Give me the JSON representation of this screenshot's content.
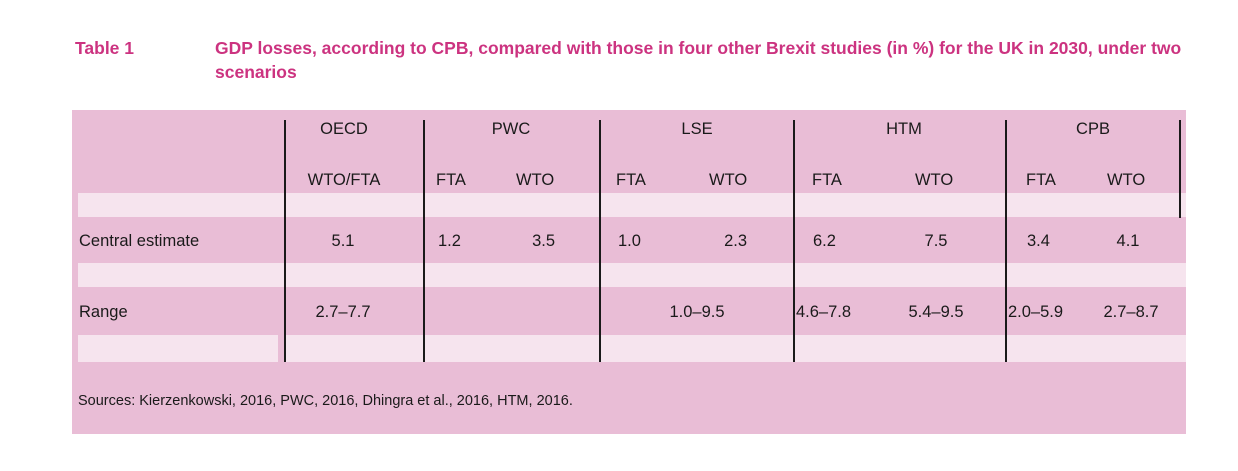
{
  "caption": {
    "label": "Table 1",
    "title": "GDP losses, according to CPB, compared with those in four other Brexit studies (in %) for the UK in 2030, under two scenarios"
  },
  "table": {
    "groups": [
      "OECD",
      "PWC",
      "LSE",
      "HTM",
      "CPB"
    ],
    "subheaders": {
      "oecd": "WTO/FTA",
      "pwc_a": "FTA",
      "pwc_b": "WTO",
      "lse_a": "FTA",
      "lse_b": "WTO",
      "htm_a": "FTA",
      "htm_b": "WTO",
      "cpb_a": "FTA",
      "cpb_b": "WTO"
    },
    "rows": {
      "central": {
        "label": "Central estimate",
        "oecd": "5.1",
        "pwc_fta": "1.2",
        "pwc_wto": "3.5",
        "lse_fta": "1.0",
        "lse_wto": "2.3",
        "htm_fta": "6.2",
        "htm_wto": "7.5",
        "cpb_fta": "3.4",
        "cpb_wto": "4.1"
      },
      "range": {
        "label": "Range",
        "oecd": "2.7–7.7",
        "lse": "1.0–9.5",
        "htm_fta": "4.6–7.8",
        "htm_wto": "5.4–9.5",
        "cpb_fta": "2.0–5.9",
        "cpb_wto": "2.7–8.7"
      }
    },
    "sources": "Sources: Kierzenkowski, 2016, PWC, 2016, Dhingra et al., 2016, HTM, 2016."
  },
  "colors": {
    "caption": "#cc3380",
    "panel": "#e9bdd6",
    "light_band": "#f6e4ee"
  }
}
